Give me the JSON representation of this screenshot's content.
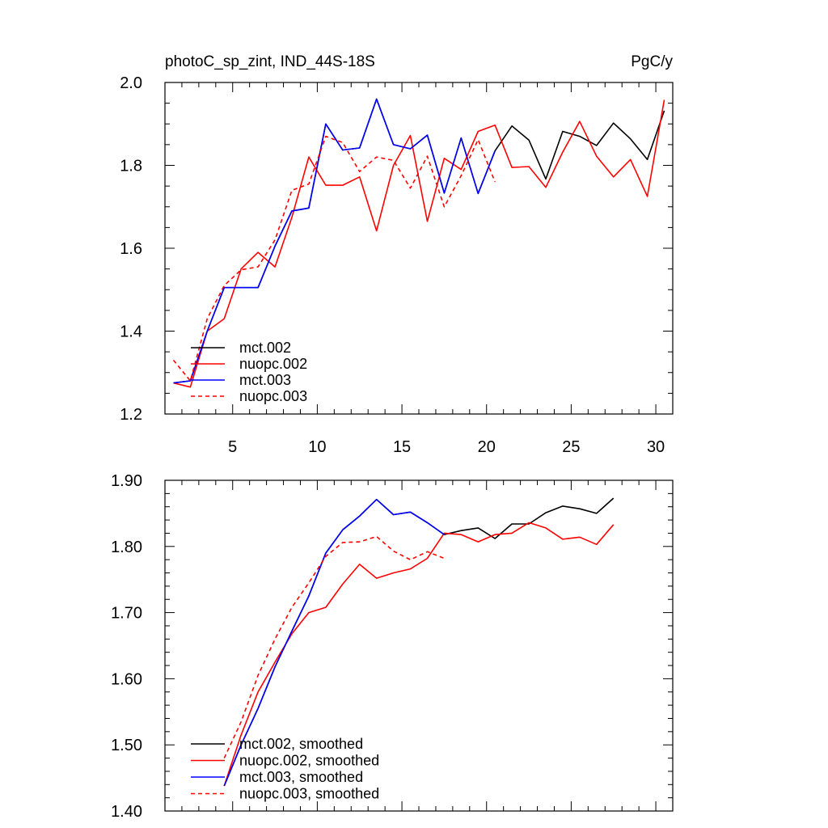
{
  "chart_data": [
    {
      "type": "line",
      "title": "photoC_sp_zint, IND_44S-18S",
      "units": "PgC/y",
      "xlim": [
        1,
        31
      ],
      "ylim": [
        1.2,
        2.0
      ],
      "yticks": [
        "1.2",
        "1.4",
        "1.6",
        "1.8",
        "2.0"
      ],
      "xticks": [
        "5",
        "10",
        "15",
        "20",
        "25",
        "30"
      ],
      "legend_position": "bottom-left",
      "series": [
        {
          "name": "mct.002",
          "color": "#000000",
          "dash": false,
          "x": [
            1.5,
            2.5,
            3.5,
            4.5,
            5.5,
            6.5,
            7.5,
            8.5,
            9.5,
            10.5,
            11.5,
            12.5,
            13.5,
            14.5,
            15.5,
            16.5,
            17.5,
            18.5,
            19.5,
            20.5,
            21.5,
            22.5,
            23.5,
            24.5,
            25.5,
            26.5,
            27.5,
            28.5,
            29.5,
            30.5
          ],
          "values": [
            1.275,
            1.28,
            1.4,
            1.505,
            1.505,
            1.505,
            1.605,
            1.69,
            1.697,
            1.9,
            1.837,
            1.842,
            1.96,
            1.85,
            1.84,
            1.873,
            1.733,
            1.866,
            1.732,
            1.835,
            1.895,
            1.861,
            1.767,
            1.882,
            1.87,
            1.848,
            1.902,
            1.864,
            1.814,
            1.932
          ]
        },
        {
          "name": "nuopc.002",
          "color": "#ff0000",
          "dash": false,
          "x": [
            1.5,
            2.5,
            3.5,
            4.5,
            5.5,
            6.5,
            7.5,
            8.5,
            9.5,
            10.5,
            11.5,
            12.5,
            13.5,
            14.5,
            15.5,
            16.5,
            17.5,
            18.5,
            19.5,
            20.5,
            21.5,
            22.5,
            23.5,
            24.5,
            25.5,
            26.5,
            27.5,
            28.5,
            29.5,
            30.5
          ],
          "values": [
            1.275,
            1.265,
            1.4,
            1.43,
            1.55,
            1.59,
            1.555,
            1.675,
            1.82,
            1.752,
            1.752,
            1.772,
            1.642,
            1.8,
            1.872,
            1.665,
            1.817,
            1.79,
            1.882,
            1.897,
            1.795,
            1.797,
            1.747,
            1.832,
            1.906,
            1.822,
            1.772,
            1.814,
            1.725,
            1.958
          ]
        },
        {
          "name": "mct.003",
          "color": "#0000ff",
          "dash": false,
          "x": [
            1.5,
            2.5,
            3.5,
            4.5,
            5.5,
            6.5,
            7.5,
            8.5,
            9.5,
            10.5,
            11.5,
            12.5,
            13.5,
            14.5,
            15.5,
            16.5,
            17.5,
            18.5,
            19.5,
            20.5
          ],
          "values": [
            1.275,
            1.28,
            1.4,
            1.505,
            1.505,
            1.505,
            1.605,
            1.69,
            1.697,
            1.9,
            1.837,
            1.842,
            1.96,
            1.85,
            1.84,
            1.873,
            1.733,
            1.866,
            1.732,
            1.835
          ]
        },
        {
          "name": "nuopc.003",
          "color": "#ff0000",
          "dash": true,
          "x": [
            1.5,
            2.5,
            3.5,
            4.5,
            5.5,
            6.5,
            7.5,
            8.5,
            9.5,
            10.5,
            11.5,
            12.5,
            13.5,
            14.5,
            15.5,
            16.5,
            17.5,
            18.5,
            19.5,
            20.5
          ],
          "values": [
            1.33,
            1.28,
            1.43,
            1.51,
            1.548,
            1.555,
            1.62,
            1.74,
            1.755,
            1.87,
            1.855,
            1.785,
            1.82,
            1.812,
            1.745,
            1.822,
            1.7,
            1.775,
            1.862,
            1.76
          ]
        }
      ]
    },
    {
      "type": "line",
      "xlim": [
        1,
        31
      ],
      "ylim": [
        1.4,
        1.9
      ],
      "yticks": [
        "1.40",
        "1.50",
        "1.60",
        "1.70",
        "1.80",
        "1.90"
      ],
      "legend_position": "bottom-left",
      "series": [
        {
          "name": "mct.002, smoothed",
          "color": "#000000",
          "dash": false,
          "x": [
            4.5,
            5.5,
            6.5,
            7.5,
            8.5,
            9.5,
            10.5,
            11.5,
            12.5,
            13.5,
            14.5,
            15.5,
            16.5,
            17.5,
            18.5,
            19.5,
            20.5,
            21.5,
            22.5,
            23.5,
            24.5,
            25.5,
            26.5,
            27.5
          ],
          "values": [
            1.438,
            1.5,
            1.555,
            1.618,
            1.672,
            1.725,
            1.79,
            1.825,
            1.846,
            1.871,
            1.848,
            1.852,
            1.836,
            1.818,
            1.824,
            1.828,
            1.812,
            1.834,
            1.834,
            1.851,
            1.861,
            1.857,
            1.85,
            1.873
          ]
        },
        {
          "name": "nuopc.002, smoothed",
          "color": "#ff0000",
          "dash": false,
          "x": [
            4.5,
            5.5,
            6.5,
            7.5,
            8.5,
            9.5,
            10.5,
            11.5,
            12.5,
            13.5,
            14.5,
            15.5,
            16.5,
            17.5,
            18.5,
            19.5,
            20.5,
            21.5,
            22.5,
            23.5,
            24.5,
            25.5,
            26.5,
            27.5
          ],
          "values": [
            1.438,
            1.515,
            1.58,
            1.625,
            1.668,
            1.7,
            1.708,
            1.743,
            1.773,
            1.752,
            1.76,
            1.766,
            1.782,
            1.82,
            1.818,
            1.807,
            1.818,
            1.82,
            1.836,
            1.828,
            1.811,
            1.814,
            1.803,
            1.833
          ]
        },
        {
          "name": "mct.003, smoothed",
          "color": "#0000ff",
          "dash": false,
          "x": [
            4.5,
            5.5,
            6.5,
            7.5,
            8.5,
            9.5,
            10.5,
            11.5,
            12.5,
            13.5,
            14.5,
            15.5,
            16.5,
            17.5
          ],
          "values": [
            1.438,
            1.5,
            1.555,
            1.618,
            1.672,
            1.725,
            1.79,
            1.825,
            1.846,
            1.871,
            1.848,
            1.852,
            1.836,
            1.818
          ]
        },
        {
          "name": "nuopc.003, smoothed",
          "color": "#ff0000",
          "dash": true,
          "x": [
            4.5,
            5.5,
            6.5,
            7.5,
            8.5,
            9.5,
            10.5,
            11.5,
            12.5,
            13.5,
            14.5,
            15.5,
            16.5,
            17.5
          ],
          "values": [
            1.48,
            1.535,
            1.605,
            1.66,
            1.708,
            1.745,
            1.785,
            1.806,
            1.807,
            1.815,
            1.793,
            1.78,
            1.792,
            1.782
          ]
        }
      ]
    }
  ]
}
